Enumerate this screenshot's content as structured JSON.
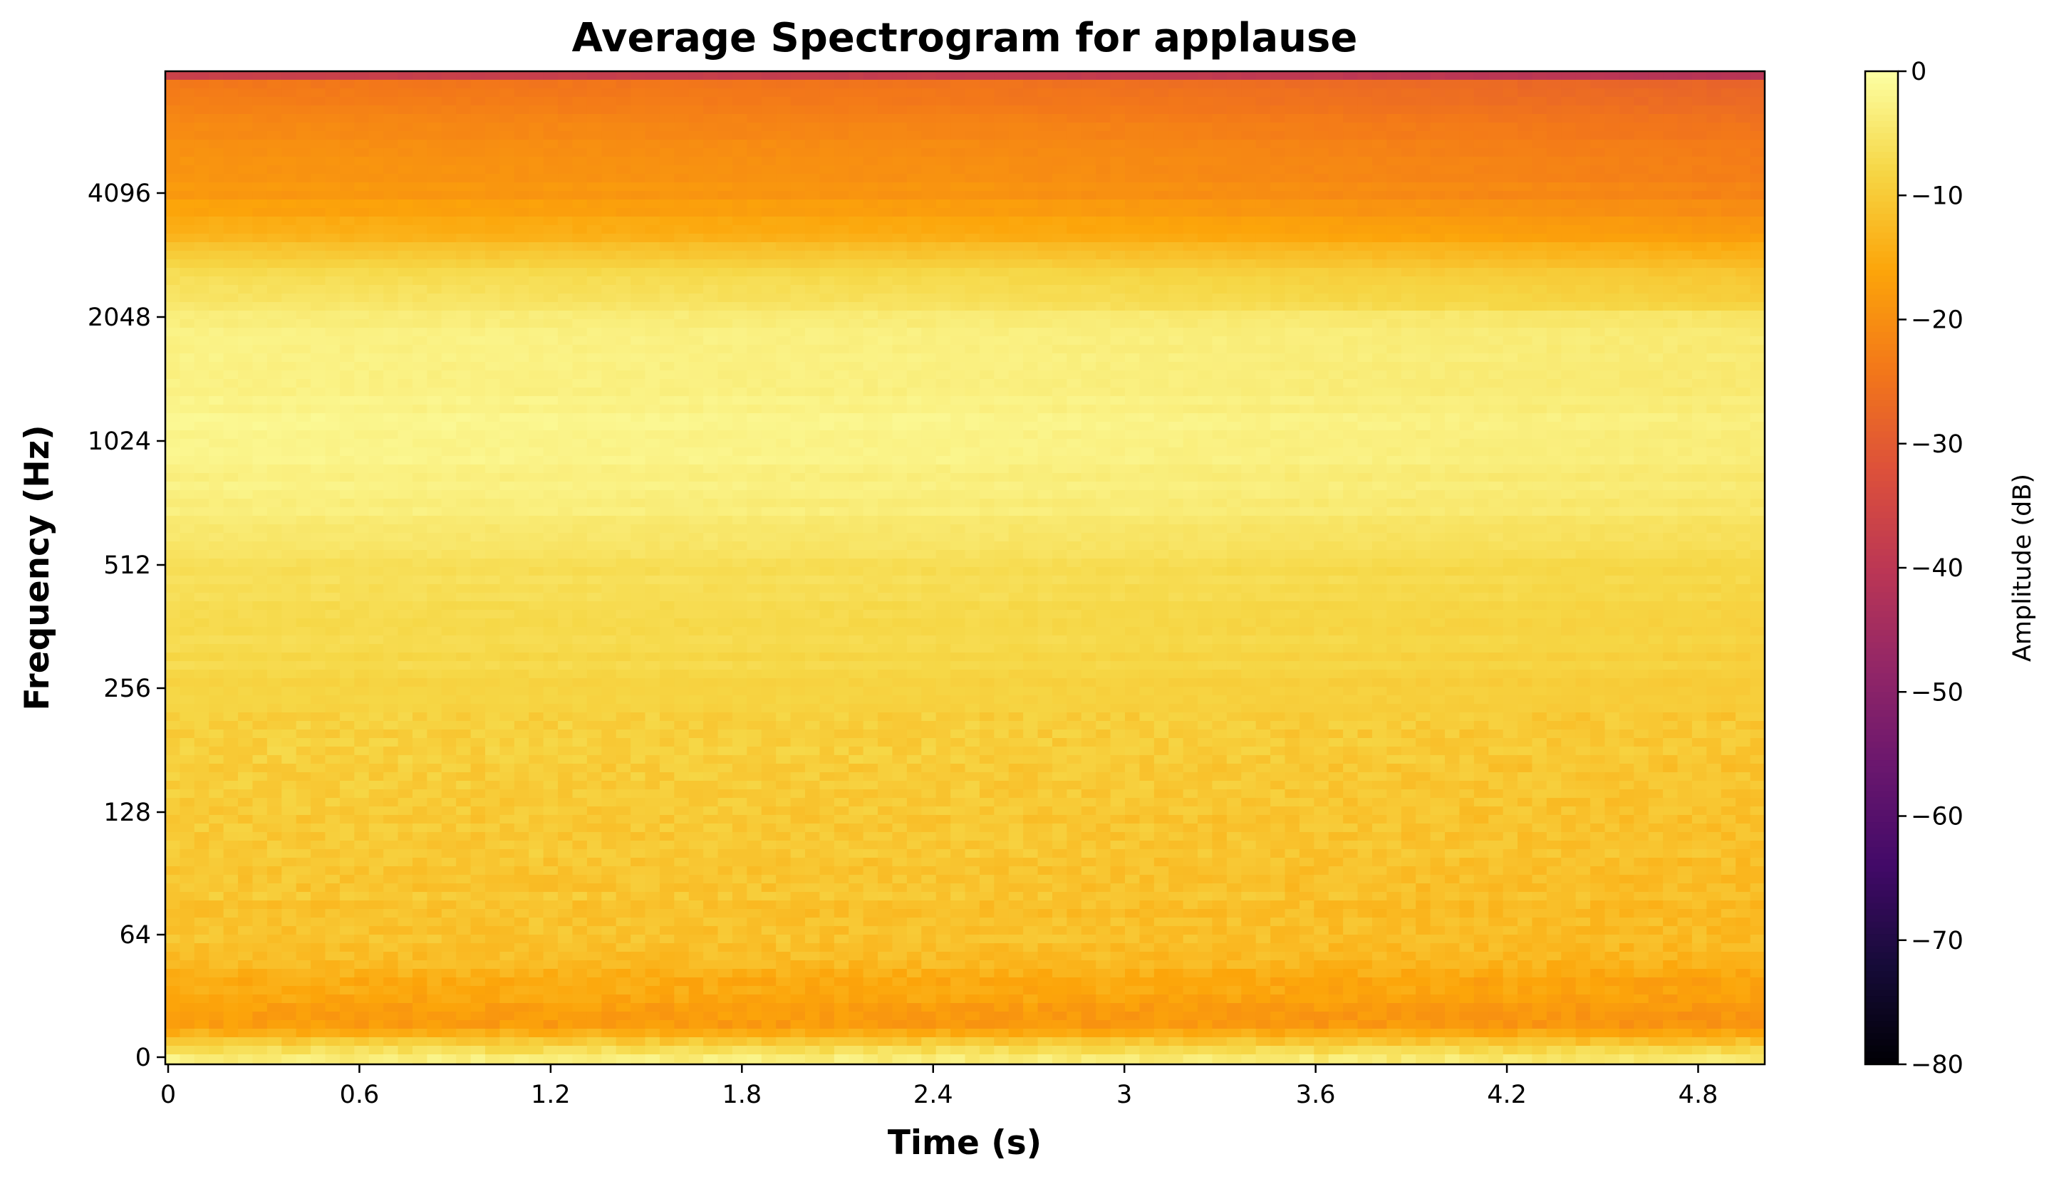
{
  "chart_data": {
    "type": "heatmap",
    "title": "Average Spectrogram for applause",
    "xlabel": "Time (s)",
    "ylabel": "Frequency (Hz)",
    "xlim": [
      0,
      5.0
    ],
    "x_ticks": [
      "0",
      "0.6",
      "1.2",
      "1.8",
      "2.4",
      "3",
      "3.6",
      "4.2",
      "4.8"
    ],
    "x_tick_values": [
      0,
      0.6,
      1.2,
      1.8,
      2.4,
      3.0,
      3.6,
      4.2,
      4.8
    ],
    "y_scale": "symlog",
    "y_ticks": [
      "0",
      "64",
      "128",
      "256",
      "512",
      "1024",
      "2048",
      "4096"
    ],
    "y_tick_values": [
      0,
      64,
      128,
      256,
      512,
      1024,
      2048,
      4096
    ],
    "colormap": "inferno",
    "colorbar": {
      "label": "Amplitude (dB)",
      "range": [
        -80,
        0
      ],
      "ticks": [
        "0",
        "−10",
        "−20",
        "−30",
        "−40",
        "−50",
        "−60",
        "−70",
        "−80"
      ],
      "tick_values": [
        0,
        -10,
        -20,
        -30,
        -40,
        -50,
        -60,
        -70,
        -80
      ]
    },
    "frequency_profile_db": [
      {
        "freq_hz": 0,
        "db": -3
      },
      {
        "freq_hz": 16,
        "db": -17
      },
      {
        "freq_hz": 32,
        "db": -16
      },
      {
        "freq_hz": 48,
        "db": -13
      },
      {
        "freq_hz": 64,
        "db": -11
      },
      {
        "freq_hz": 128,
        "db": -10
      },
      {
        "freq_hz": 256,
        "db": -8
      },
      {
        "freq_hz": 512,
        "db": -6
      },
      {
        "freq_hz": 724,
        "db": -3
      },
      {
        "freq_hz": 1024,
        "db": -2
      },
      {
        "freq_hz": 2048,
        "db": -3
      },
      {
        "freq_hz": 2700,
        "db": -8
      },
      {
        "freq_hz": 3300,
        "db": -14
      },
      {
        "freq_hz": 4096,
        "db": -18
      },
      {
        "freq_hz": 6000,
        "db": -21
      },
      {
        "freq_hz": 7800,
        "db": -24
      },
      {
        "freq_hz": 8000,
        "db": -45
      }
    ],
    "time_trend_db": [
      {
        "t": 0,
        "db": 0
      },
      {
        "t": 2.5,
        "db": -1
      },
      {
        "t": 5.0,
        "db": -4
      }
    ],
    "grid": false
  }
}
